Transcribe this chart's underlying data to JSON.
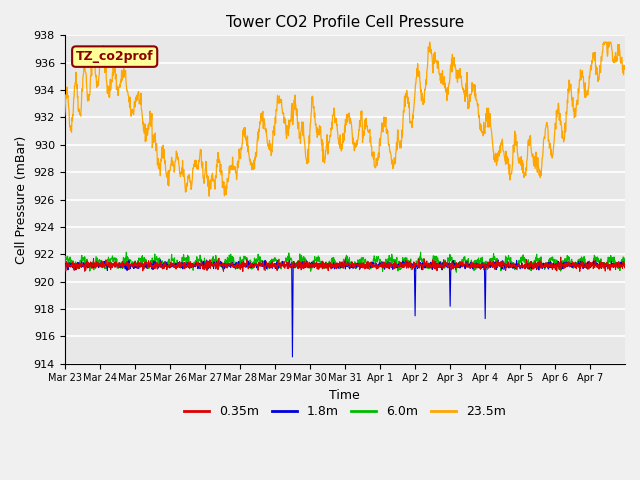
{
  "title": "Tower CO2 Profile Cell Pressure",
  "ylabel": "Cell Pressure (mBar)",
  "xlabel": "Time",
  "ylim": [
    914,
    938
  ],
  "plot_bg": "#e8e8e8",
  "fig_bg": "#f0f0f0",
  "grid_color": "#ffffff",
  "legend_label": "TZ_co2prof",
  "legend_bg": "#ffff99",
  "legend_border": "#8b0000",
  "series_colors": {
    "0.35m": "#dd0000",
    "1.8m": "#0000dd",
    "6.0m": "#00bb00",
    "23.5m": "#ffa500"
  },
  "xtick_labels": [
    "Mar 23",
    "Mar 24",
    "Mar 25",
    "Mar 26",
    "Mar 27",
    "Mar 28",
    "Mar 29",
    "Mar 30",
    "Mar 31",
    "Apr 1",
    "Apr 2",
    "Apr 3",
    "Apr 4",
    "Apr 5",
    "Apr 6",
    "Apr 7"
  ],
  "ytick_values": [
    914,
    916,
    918,
    920,
    922,
    924,
    926,
    928,
    930,
    932,
    934,
    936,
    938
  ],
  "figsize": [
    6.4,
    4.8
  ],
  "dpi": 100
}
